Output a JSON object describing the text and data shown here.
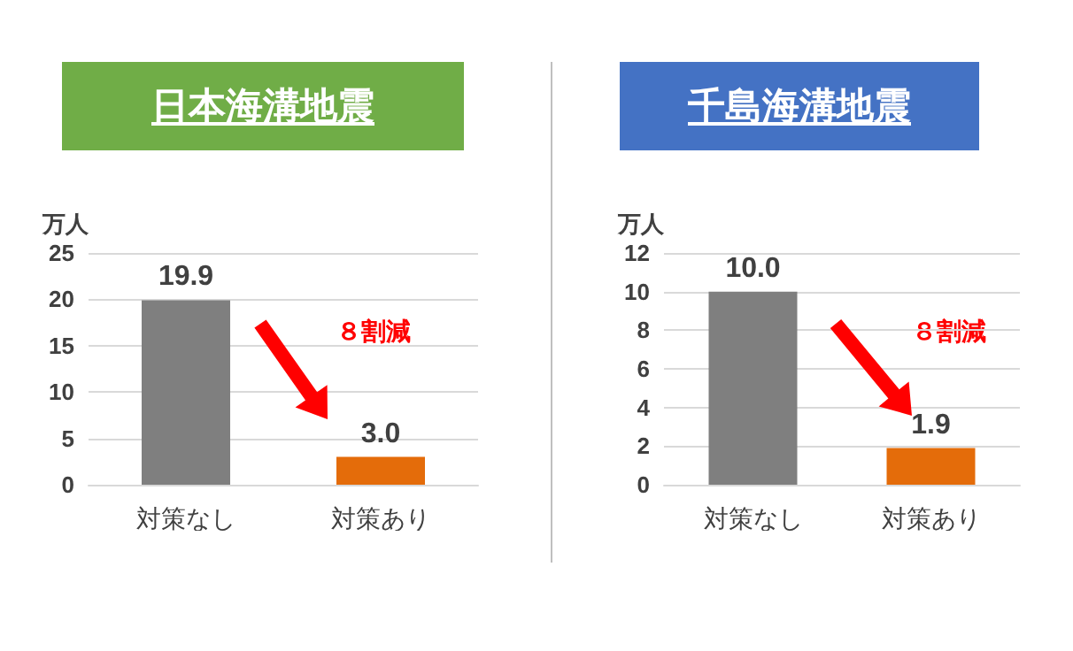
{
  "chart_data": [
    {
      "type": "bar",
      "title": "日本海溝地震",
      "ylabel": "万人",
      "categories": [
        "対策なし",
        "対策あり"
      ],
      "values": [
        19.9,
        3.0
      ],
      "colors": [
        "#7f7f7f",
        "#e46c0a"
      ],
      "value_labels": [
        "19.9",
        "3.0"
      ],
      "ylim": [
        0,
        25
      ],
      "yticks": [
        0,
        5,
        10,
        15,
        20,
        25
      ],
      "grid": "y",
      "annotations": [
        "８割減"
      ]
    },
    {
      "type": "bar",
      "title": "千島海溝地震",
      "ylabel": "万人",
      "categories": [
        "対策なし",
        "対策あり"
      ],
      "values": [
        10.0,
        1.9
      ],
      "colors": [
        "#7f7f7f",
        "#e46c0a"
      ],
      "value_labels": [
        "10.0",
        "1.9"
      ],
      "ylim": [
        0,
        12
      ],
      "yticks": [
        0,
        2,
        4,
        6,
        8,
        10,
        12
      ],
      "grid": "y",
      "annotations": [
        "８割減"
      ]
    }
  ]
}
